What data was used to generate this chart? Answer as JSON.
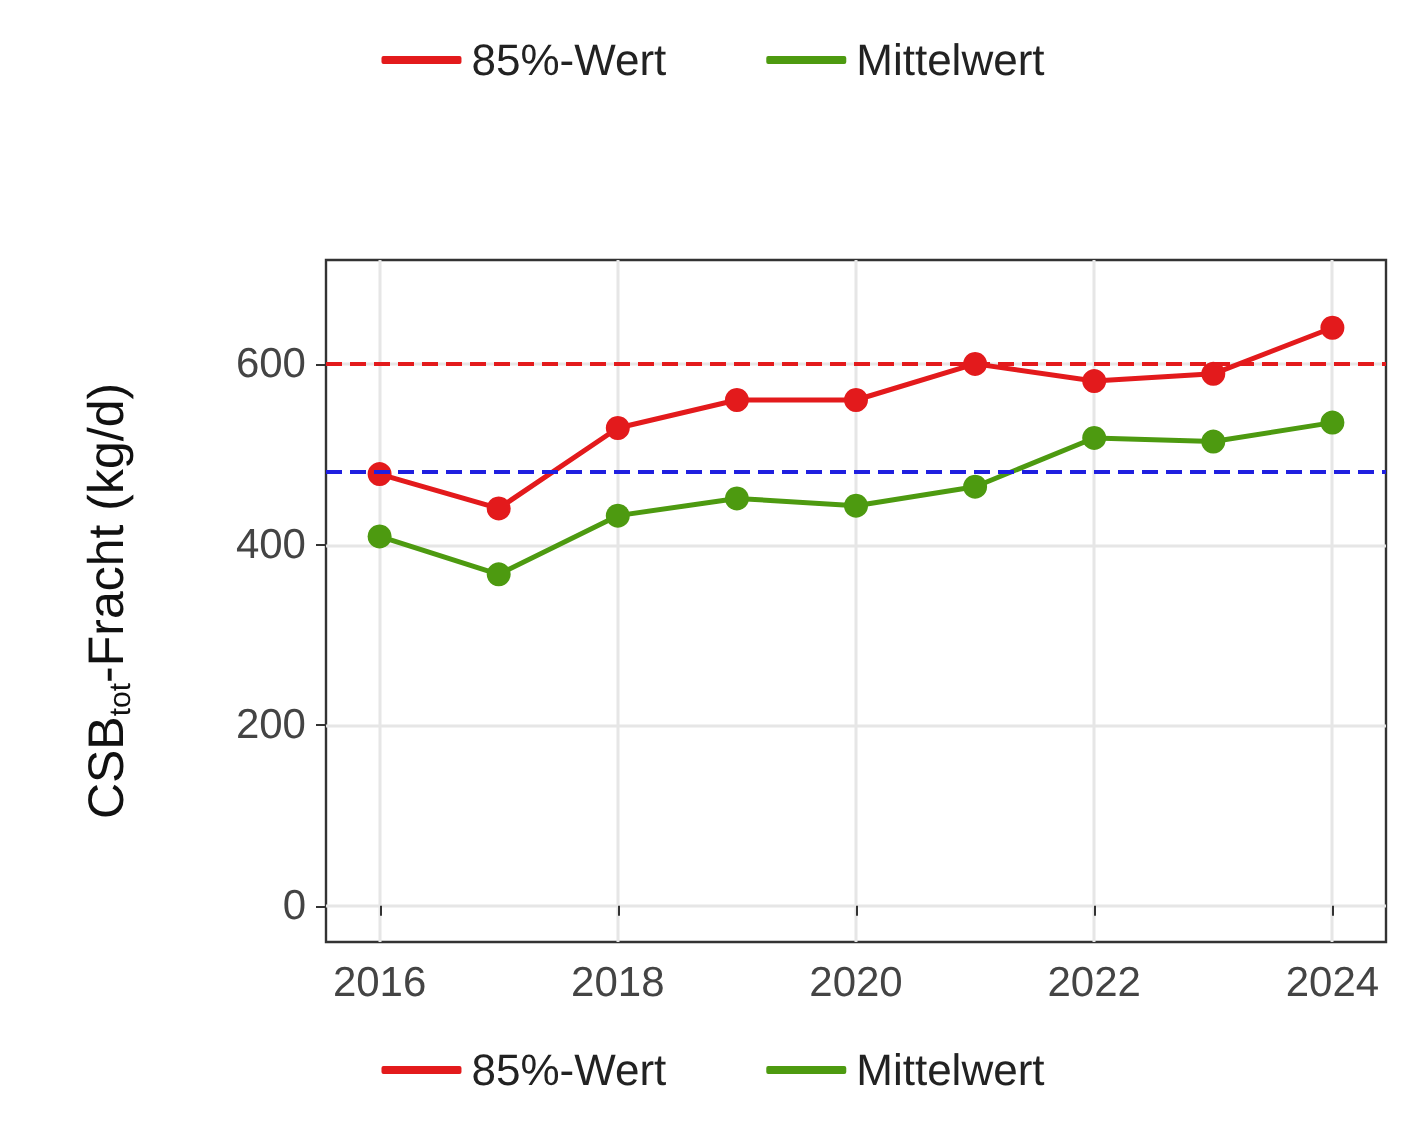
{
  "chart_data": {
    "type": "line",
    "ylabel": "CSB$_{tot}$-Fracht (kg/d)",
    "x": [
      2016,
      2017,
      2018,
      2019,
      2020,
      2021,
      2022,
      2023,
      2024
    ],
    "series": [
      {
        "name": "85%-Wert",
        "color": "#e31a1c",
        "values": [
          478,
          440,
          529,
          560,
          560,
          600,
          581,
          589,
          640
        ]
      },
      {
        "name": "Mittelwert",
        "color": "#4d9a10",
        "values": [
          409,
          367,
          432,
          451,
          443,
          464,
          518,
          514,
          535
        ]
      }
    ],
    "xlim": [
      2015.55,
      2024.45
    ],
    "xticks": [
      2016,
      2018,
      2020,
      2022,
      2024
    ],
    "ylim": [
      -40,
      715
    ],
    "yticks": [
      0,
      200,
      400,
      600
    ],
    "ref_lines": [
      {
        "axis": "y",
        "value": 600,
        "color": "#e31a1c",
        "line_style": "dashed"
      },
      {
        "axis": "y",
        "value": 480,
        "color": "#1f1fe0",
        "line_style": "dashed"
      }
    ],
    "grid": true,
    "legend": [
      "top",
      "bottom"
    ],
    "marker": "circle",
    "line_style": "solid"
  }
}
